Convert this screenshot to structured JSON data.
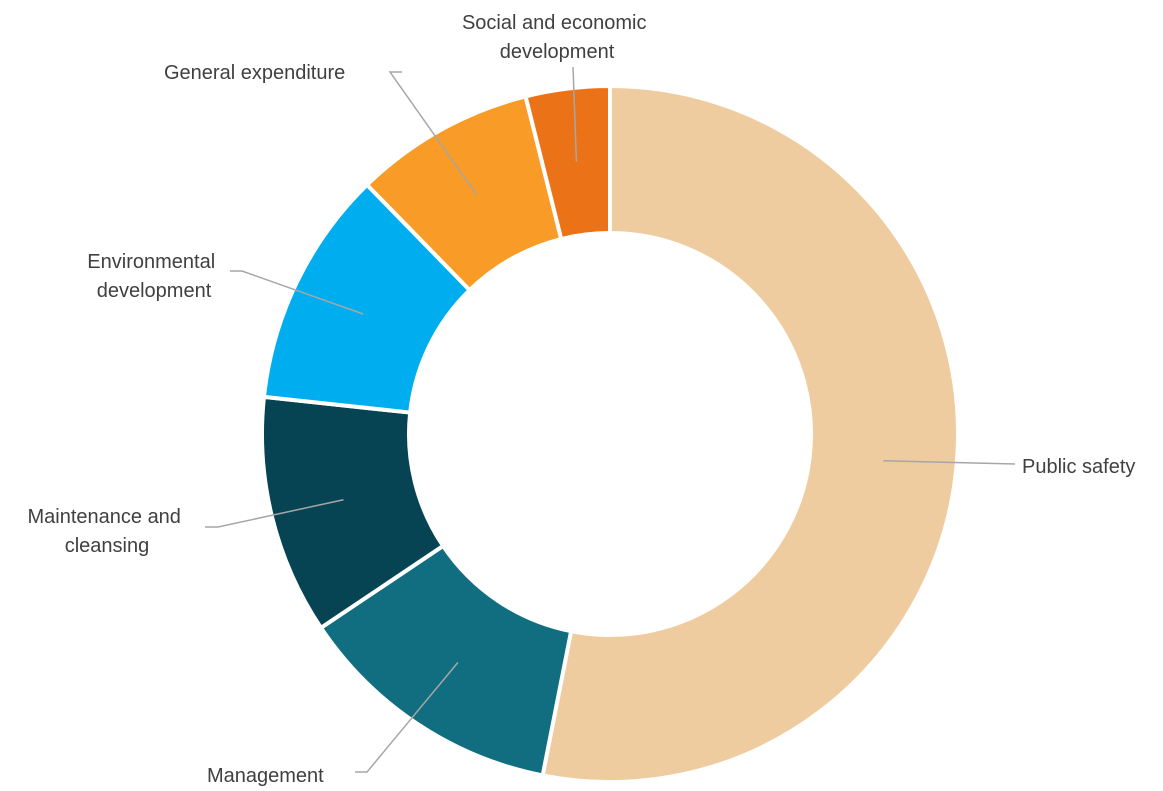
{
  "chart_data": {
    "type": "pie",
    "categories": [
      "Public safety",
      "Management",
      "Maintenance and cleansing",
      "Environmental development",
      "General expenditure",
      "Social and economic development"
    ],
    "values": [
      53.1,
      12.5,
      11.1,
      11.0,
      8.4,
      3.9
    ],
    "colors": [
      "#EFCC9F",
      "#116E80",
      "#064453",
      "#00AEEF",
      "#F89C27",
      "#EC7218"
    ],
    "legend": "none"
  }
}
